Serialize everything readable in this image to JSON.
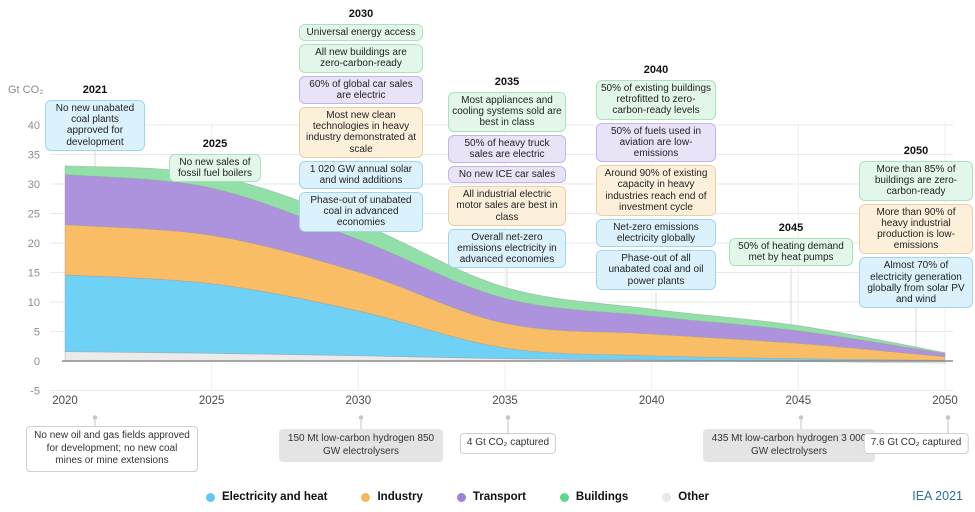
{
  "figure": {
    "credit": "IEA 2021"
  },
  "colors": {
    "area": {
      "other": "#ebebeb",
      "electricity": "#6fd1f6",
      "industry": "#f9bd66",
      "transport": "#ad93dd",
      "buildings": "#90e0a7"
    },
    "area_stroke": "#9a9a9a",
    "zero_line": "#8c8c8c",
    "gridline": "#e9e9e9",
    "box": {
      "electricity": {
        "bg": "#dbf1fb",
        "bd": "#9fd6ee"
      },
      "industry": {
        "bg": "#fcf0db",
        "bd": "#e8d0a4"
      },
      "transport": {
        "bg": "#e9e3f8",
        "bd": "#c3b4ea"
      },
      "buildings": {
        "bg": "#e2f7e9",
        "bd": "#a9e2bd"
      }
    },
    "credit_blue": "#2f6da4"
  },
  "chart_data": {
    "type": "area",
    "stacked": true,
    "ylabel": "Gt CO₂",
    "x": [
      2020,
      2025,
      2030,
      2035,
      2040,
      2045,
      2050
    ],
    "series": [
      {
        "key": "other",
        "name": "Other",
        "values": [
          1.6,
          1.3,
          0.9,
          0.4,
          0.2,
          -0.1,
          -0.35
        ]
      },
      {
        "key": "electricity",
        "name": "Electricity and heat",
        "values": [
          13.0,
          11.8,
          7.6,
          1.8,
          0.7,
          0.4,
          0.12
        ]
      },
      {
        "key": "industry",
        "name": "Industry",
        "values": [
          8.5,
          8.2,
          6.6,
          4.2,
          3.7,
          2.6,
          0.6
        ]
      },
      {
        "key": "transport",
        "name": "Transport",
        "values": [
          8.5,
          8.0,
          5.5,
          4.2,
          3.0,
          2.1,
          0.55
        ]
      },
      {
        "key": "buildings",
        "name": "Buildings",
        "values": [
          1.5,
          2.2,
          2.8,
          1.9,
          1.2,
          0.9,
          0.15
        ]
      }
    ],
    "ylim": [
      -5,
      42
    ],
    "yticks": [
      40,
      35,
      30,
      25,
      20,
      15,
      10,
      5,
      0,
      -5
    ],
    "xticks": [
      2020,
      2025,
      2030,
      2035,
      2040,
      2045,
      2050
    ],
    "grid": true,
    "legend_position": "bottom"
  },
  "legend": {
    "items": [
      {
        "label": "Electricity and heat",
        "color": "#5ec8f2"
      },
      {
        "label": "Industry",
        "color": "#f8b859"
      },
      {
        "label": "Transport",
        "color": "#9d82d6"
      },
      {
        "label": "Buildings",
        "color": "#5dd88c"
      },
      {
        "label": "Other",
        "color": "#e8e8e8"
      }
    ]
  },
  "milestones": [
    {
      "year": "2021",
      "items": [
        {
          "text": "No new unabated coal plants approved for development",
          "category": "electricity"
        }
      ]
    },
    {
      "year": "2025",
      "items": [
        {
          "text": "No new sales of fossil fuel boilers",
          "category": "buildings"
        }
      ]
    },
    {
      "year": "2030",
      "items": [
        {
          "text": "Universal energy access",
          "category": "buildings"
        },
        {
          "text": "All new buildings are zero-carbon-ready",
          "category": "buildings"
        },
        {
          "text": "60% of global car sales are electric",
          "category": "transport"
        },
        {
          "text": "Most new clean technologies in heavy industry demonstrated at scale",
          "category": "industry"
        },
        {
          "text": "1 020 GW annual solar and wind additions",
          "category": "electricity"
        },
        {
          "text": "Phase-out of unabated coal in advanced economies",
          "category": "electricity"
        }
      ]
    },
    {
      "year": "2035",
      "items": [
        {
          "text": "Most appliances and cooling systems sold are best in class",
          "category": "buildings"
        },
        {
          "text": "50% of heavy truck sales are electric",
          "category": "transport"
        },
        {
          "text": "No new ICE car sales",
          "category": "transport"
        },
        {
          "text": "All industrial electric motor sales are best in class",
          "category": "industry"
        },
        {
          "text": "Overall net-zero emissions electricity in advanced economies",
          "category": "electricity"
        }
      ]
    },
    {
      "year": "2040",
      "items": [
        {
          "text": "50% of existing buildings retrofitted to zero-carbon-ready levels",
          "category": "buildings"
        },
        {
          "text": "50% of fuels used in aviation are low-emissions",
          "category": "transport"
        },
        {
          "text": "Around 90% of existing capacity in heavy industries reach end of investment cycle",
          "category": "industry"
        },
        {
          "text": "Net-zero emissions electricity globally",
          "category": "electricity"
        },
        {
          "text": "Phase-out of all unabated coal and oil power plants",
          "category": "electricity"
        }
      ]
    },
    {
      "year": "2045",
      "items": [
        {
          "text": "50% of heating demand met by heat pumps",
          "category": "buildings"
        }
      ]
    },
    {
      "year": "2050",
      "items": [
        {
          "text": "More than 85% of buildings are zero-carbon-ready",
          "category": "buildings"
        },
        {
          "text": "More than 90% of heavy industrial production is low-emissions",
          "category": "industry"
        },
        {
          "text": "Almost 70% of electricity generation globally from solar PV and wind",
          "category": "electricity"
        }
      ]
    }
  ],
  "bottom_annotations": [
    {
      "text": "No new oil and gas fields approved for development; no new coal mines or mine extensions",
      "style": "plain"
    },
    {
      "text": "150 Mt low-carbon hydrogen 850 GW electrolysers",
      "style": "gray"
    },
    {
      "text": "4 Gt CO₂ captured",
      "style": "plain"
    },
    {
      "text": "435 Mt low-carbon hydrogen 3 000 GW electrolysers",
      "style": "gray"
    },
    {
      "text": "7.6 Gt CO₂ captured",
      "style": "plain"
    }
  ]
}
